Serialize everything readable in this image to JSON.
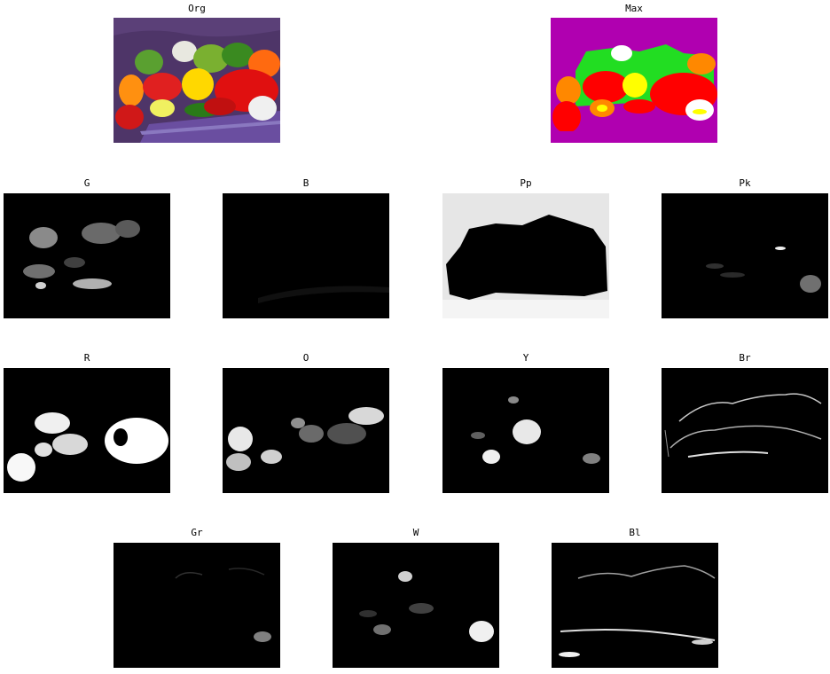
{
  "panels": {
    "org": {
      "title": "Org"
    },
    "max": {
      "title": "Max"
    },
    "g": {
      "title": "G"
    },
    "b": {
      "title": "B"
    },
    "pp": {
      "title": "Pp"
    },
    "pk": {
      "title": "Pk"
    },
    "r": {
      "title": "R"
    },
    "o": {
      "title": "O"
    },
    "y": {
      "title": "Y"
    },
    "br": {
      "title": "Br"
    },
    "gr": {
      "title": "Gr"
    },
    "w": {
      "title": "W"
    },
    "bl": {
      "title": "Bl"
    }
  },
  "colors": {
    "background": "#ffffff",
    "mask_background": "#000000",
    "max_purple": "#b000b0",
    "max_green": "#22dd22",
    "max_red": "#ff0000",
    "max_yellow": "#ffff00",
    "max_orange": "#ff8800",
    "org_purple": "#4e3568"
  }
}
